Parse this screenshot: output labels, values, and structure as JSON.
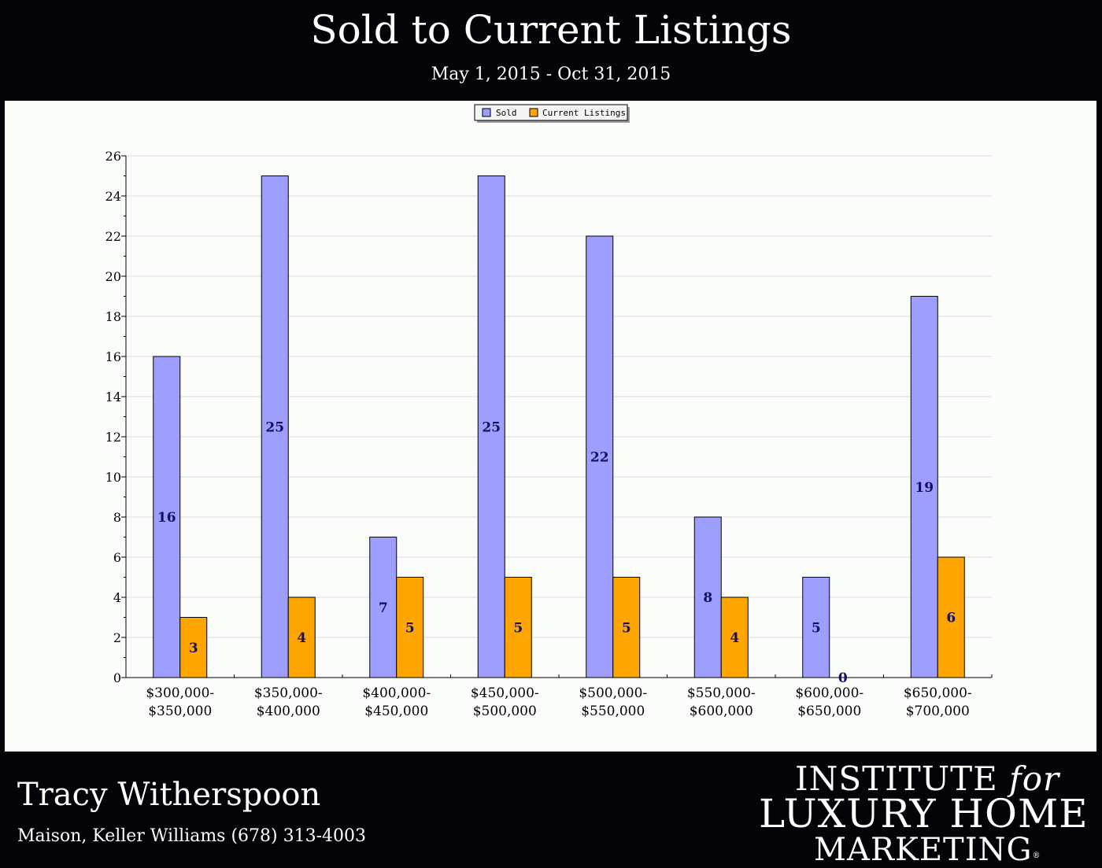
{
  "header": {
    "title": "Sold to Current Listings",
    "subtitle": "May 1, 2015 - Oct 31, 2015"
  },
  "footer": {
    "agent_name": "Tracy Witherspoon",
    "agent_info": "Maison, Keller Williams (678) 313-4003",
    "logo": {
      "line1": "INSTITUTE",
      "line1_for": "for",
      "line2": "LUXURY HOME",
      "line3": "MARKETING",
      "registered": "®"
    }
  },
  "colors": {
    "background": "#040307",
    "plot_background": "#fbfdfb",
    "sold": "#9e9eff",
    "current_listings": "#ffa500",
    "data_label": "#14105e"
  },
  "chart_data": {
    "type": "bar",
    "title": "Sold to Current Listings",
    "subtitle": "May 1, 2015 - Oct 31, 2015",
    "categories": [
      [
        "$300,000-",
        "$350,000"
      ],
      [
        "$350,000-",
        "$400,000"
      ],
      [
        "$400,000-",
        "$450,000"
      ],
      [
        "$450,000-",
        "$500,000"
      ],
      [
        "$500,000-",
        "$550,000"
      ],
      [
        "$550,000-",
        "$600,000"
      ],
      [
        "$600,000-",
        "$650,000"
      ],
      [
        "$650,000-",
        "$700,000"
      ]
    ],
    "series": [
      {
        "name": "Sold",
        "color": "#9e9eff",
        "values": [
          16,
          25,
          7,
          25,
          22,
          8,
          5,
          19
        ]
      },
      {
        "name": "Current Listings",
        "color": "#ffa500",
        "values": [
          3,
          4,
          5,
          5,
          5,
          4,
          0,
          6
        ]
      }
    ],
    "ylim": [
      0,
      26
    ],
    "y_ticks": [
      0,
      2,
      4,
      6,
      8,
      10,
      12,
      14,
      16,
      18,
      20,
      22,
      24,
      26
    ],
    "grid": true,
    "legend": "top-center",
    "data_labels": true
  }
}
